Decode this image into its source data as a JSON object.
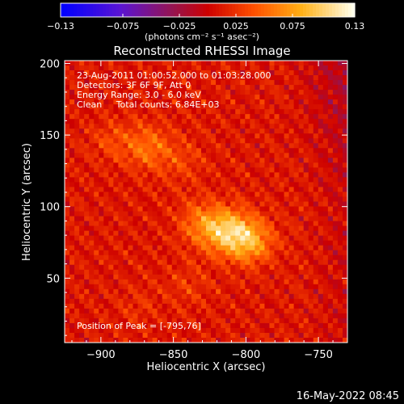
{
  "chart_data": {
    "type": "heatmap",
    "title": "Reconstructed RHESSI Image",
    "xlabel": "Heliocentric X (arcsec)",
    "ylabel": "Heliocentric Y (arcsec)",
    "xlim": [
      -925,
      -730
    ],
    "ylim": [
      5,
      202
    ],
    "x_ticks": [
      {
        "value": -900,
        "label": "−900"
      },
      {
        "value": -850,
        "label": "−850"
      },
      {
        "value": -800,
        "label": "−800"
      },
      {
        "value": -750,
        "label": "−750"
      }
    ],
    "y_ticks": [
      {
        "value": 50,
        "label": "50"
      },
      {
        "value": 100,
        "label": "100"
      },
      {
        "value": 150,
        "label": "150"
      },
      {
        "value": 200,
        "label": "200"
      }
    ],
    "colorbar": {
      "min": -0.13,
      "max": 0.13,
      "tick_values": [
        -0.13,
        -0.075,
        -0.025,
        0.025,
        0.075,
        0.13
      ],
      "tick_labels": [
        "−0.13",
        "−0.075",
        "−0.025",
        "0.025",
        "0.075",
        "0.13"
      ],
      "unit_label": "(photons cm⁻² s⁻¹ asec⁻²)"
    },
    "annotations": [
      "23-Aug-2011 01:00:52.000 to 01:03:28.000",
      "Detectors: 3F 6F 9F, Att 0",
      "Energy Range: 3.0 - 6.0 keV",
      "Clean     Total counts: 6.84E+03"
    ],
    "peak_text": "Position of Peak = [-795,76]",
    "peak": {
      "x": -795,
      "y": 76
    },
    "sources": [
      {
        "x": -812,
        "y": 82,
        "amp": 0.075
      },
      {
        "x": -796,
        "y": 76,
        "amp": 0.06
      },
      {
        "x": -830,
        "y": 88,
        "amp": 0.045
      },
      {
        "x": -868,
        "y": 142,
        "amp": 0.04
      },
      {
        "x": -893,
        "y": 146,
        "amp": 0.02
      },
      {
        "x": -845,
        "y": 132,
        "amp": 0.02
      },
      {
        "x": -840,
        "y": 45,
        "amp": 0.015
      },
      {
        "x": -875,
        "y": 30,
        "amp": 0.01
      }
    ]
  },
  "footer": "16-May-2022 08:45"
}
